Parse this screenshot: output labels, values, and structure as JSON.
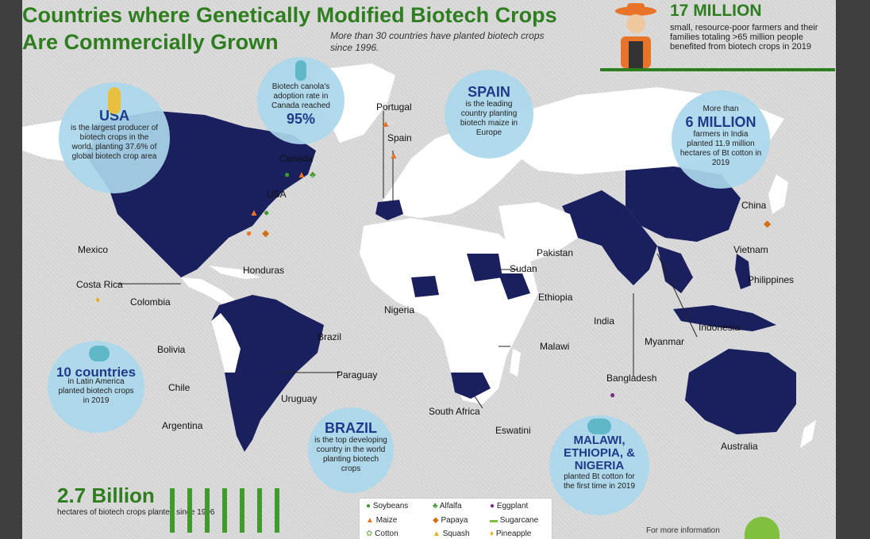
{
  "title_line1": "Countries where Genetically Modified Biotech Crops",
  "title_line2": "Are Commercially Grown",
  "subtitle": "More than 30 countries have planted biotech crops since 1996.",
  "top_stat": {
    "big": "17 MILLION",
    "text": "small, resource-poor farmers and their families totaling >65 million people benefited from biotech crops in 2019"
  },
  "circles": {
    "usa": {
      "head": "USA",
      "text": "is the largest producer of biotech crops in the world, planting 37.6% of global biotech crop area"
    },
    "canola": {
      "text": "Biotech canola's adoption rate in Canada reached",
      "big": "95%"
    },
    "spain": {
      "head": "SPAIN",
      "text": "is the leading country planting biotech maize in Europe"
    },
    "india": {
      "pre": "More than",
      "head": "6 MILLION",
      "text": "farmers in India planted 11.9 million hectares of Bt cotton in 2019"
    },
    "latam": {
      "head": "10 countries",
      "text": "in Latin America planted biotech crops in 2019"
    },
    "brazil": {
      "head": "BRAZIL",
      "text": "is the top developing country in the world planting biotech crops"
    },
    "africa": {
      "head": "MALAWI, ETHIOPIA, & NIGERIA",
      "text": "planted Bt cotton for the first time in 2019"
    }
  },
  "labels": {
    "portugal": "Portugal",
    "spain": "Spain",
    "canada": "Canada",
    "usa": "USA",
    "mexico": "Mexico",
    "honduras": "Honduras",
    "costa_rica": "Costa Rica",
    "colombia": "Colombia",
    "bolivia": "Bolivia",
    "chile": "Chile",
    "argentina": "Argentina",
    "brazil": "Brazil",
    "paraguay": "Paraguay",
    "uruguay": "Uruguay",
    "nigeria": "Nigeria",
    "sudan": "Sudan",
    "pakistan": "Pakistan",
    "ethiopia": "Ethiopia",
    "malawi": "Malawi",
    "south_africa": "South Africa",
    "eswatini": "Eswatini",
    "india": "India",
    "myanmar": "Myanmar",
    "bangladesh": "Bangladesh",
    "indonesia": "Indonesia",
    "china": "China",
    "vietnam": "Vietnam",
    "philippines": "Philippines",
    "australia": "Australia"
  },
  "legend": {
    "soybeans": "Soybeans",
    "alfalfa": "Alfalfa",
    "eggplant": "Eggplant",
    "maize": "Maize",
    "papaya": "Papaya",
    "sugarcane": "Sugarcane",
    "cotton": "Cotton",
    "squash": "Squash",
    "pineapple": "Pineapple"
  },
  "bottom_stat": {
    "big": "2.7 Billion",
    "text": "hectares of biotech crops planted since 1996"
  },
  "more_info": "For more information",
  "colors": {
    "highlight": "#1a1f5e",
    "land": "#ffffff",
    "title_green": "#2e7d1f",
    "circle": "#aad7eb",
    "maize": "#e8742a",
    "soy": "#3f9b2c"
  }
}
